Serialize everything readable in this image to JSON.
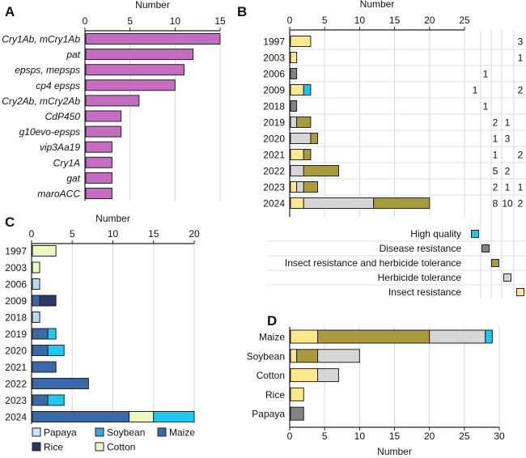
{
  "panels": {
    "a": "A",
    "b": "B",
    "c": "C",
    "d": "D"
  },
  "chart_data": [
    {
      "id": "A",
      "type": "bar",
      "orientation": "horizontal",
      "xlabel": "Number",
      "xlim": [
        0,
        15
      ],
      "xticks": [
        0,
        5,
        10,
        15
      ],
      "grid": true,
      "categories": [
        "Cry1Ab, mCry1Ab",
        "pat",
        "epsps, mepsps",
        "cp4 epsps",
        "Cry2Ab, mCry2Ab",
        "CdP450",
        "g10evo-epsps",
        "vip3Aa19",
        "Cry1A",
        "gat",
        "maroACC"
      ],
      "values": [
        15,
        12,
        11,
        10,
        6,
        4,
        4,
        3,
        3,
        3,
        3
      ],
      "colors": {
        "bar": "#c56dc0"
      }
    },
    {
      "id": "B",
      "type": "bar",
      "orientation": "horizontal",
      "stacked": true,
      "xlabel": "Number",
      "xlim": [
        0,
        25
      ],
      "xticks": [
        0,
        5,
        10,
        15,
        20,
        25
      ],
      "grid": true,
      "categories": [
        "1997",
        "2003",
        "2006",
        "2009",
        "2018",
        "2019",
        "2020",
        "2021",
        "2022",
        "2023",
        "2024"
      ],
      "series": [
        {
          "name": "Insect resistance",
          "color": "#fde98c",
          "values": [
            3,
            1,
            0,
            2,
            0,
            0,
            0,
            2,
            0,
            1,
            2
          ]
        },
        {
          "name": "Herbicide tolerance",
          "color": "#d6d6d6",
          "values": [
            0,
            0,
            0,
            0,
            0,
            1,
            3,
            0,
            2,
            1,
            10
          ]
        },
        {
          "name": "Insect  resistance and herbicide tolerance",
          "color": "#a99b3b",
          "values": [
            0,
            0,
            0,
            0,
            0,
            2,
            1,
            1,
            5,
            2,
            8
          ]
        },
        {
          "name": "Disease resistance",
          "color": "#828282",
          "values": [
            0,
            0,
            1,
            0,
            1,
            0,
            0,
            0,
            0,
            0,
            0
          ]
        },
        {
          "name": "High quality",
          "color": "#1fc3ee",
          "values": [
            0,
            0,
            0,
            1,
            0,
            0,
            0,
            0,
            0,
            0,
            0
          ]
        }
      ],
      "legend_order": [
        "High quality",
        "Disease resistance",
        "Insect  resistance and herbicide tolerance",
        "Herbicide tolerance",
        "Insect resistance"
      ],
      "legend": "bottom-right table"
    },
    {
      "id": "C",
      "type": "bar",
      "orientation": "horizontal",
      "stacked": true,
      "xlabel": "Number",
      "xlim": [
        0,
        20
      ],
      "xticks": [
        0,
        5,
        10,
        15,
        20
      ],
      "grid": true,
      "categories": [
        "1997",
        "2003",
        "2006",
        "2009",
        "2018",
        "2019",
        "2020",
        "2021",
        "2022",
        "2023",
        "2024"
      ],
      "series": [
        {
          "name": "Papaya",
          "color": "#b9d8f2",
          "legend_color": "#cfe4f5",
          "values": [
            0,
            0,
            1,
            0,
            1,
            0,
            0,
            0,
            0,
            0,
            0
          ]
        },
        {
          "name": "Maize",
          "color": "#3a69a8",
          "legend_color": "#3a69a8",
          "values": [
            0,
            0,
            0,
            1,
            0,
            2,
            2,
            3,
            7,
            2,
            12
          ]
        },
        {
          "name": "Rice",
          "color": "#2b3960",
          "legend_color": "#2b3960",
          "values": [
            0,
            0,
            0,
            2,
            0,
            0,
            0,
            0,
            0,
            0,
            0
          ]
        },
        {
          "name": "Cotton",
          "color": "#eaf8c2",
          "legend_color": "#eaf8c2",
          "values": [
            3,
            1,
            0,
            0,
            0,
            0,
            0,
            0,
            0,
            0,
            3
          ]
        },
        {
          "name": "Soybean",
          "color": "#1fc8ee",
          "legend_color": "#3ba5dc",
          "values": [
            0,
            0,
            0,
            0,
            0,
            1,
            2,
            0,
            0,
            2,
            5
          ]
        }
      ],
      "legend_order": [
        "Papaya",
        "Soybean",
        "Maize",
        "Rice",
        "Cotton"
      ],
      "legend": "bottom"
    },
    {
      "id": "D",
      "type": "bar",
      "orientation": "horizontal",
      "stacked": true,
      "xlabel": "Number",
      "xlim": [
        0,
        30
      ],
      "xticks": [
        0,
        5,
        10,
        15,
        20,
        25,
        30
      ],
      "grid": true,
      "categories": [
        "Maize",
        "Soybean",
        "Cotton",
        "Rice",
        "Papaya"
      ],
      "series": [
        {
          "name": "Insect resistance",
          "color": "#fde98c",
          "values": [
            4,
            1,
            4,
            2,
            0
          ]
        },
        {
          "name": "Insect  resistance and herbicide tolerance",
          "color": "#a99b3b",
          "values": [
            16,
            3,
            0,
            0,
            0
          ]
        },
        {
          "name": "Herbicide tolerance",
          "color": "#d6d6d6",
          "values": [
            8,
            6,
            3,
            0,
            0
          ]
        },
        {
          "name": "Disease resistance",
          "color": "#828282",
          "values": [
            0,
            0,
            0,
            0,
            2
          ]
        },
        {
          "name": "High quality",
          "color": "#1fc3ee",
          "values": [
            1,
            0,
            0,
            0,
            0
          ]
        }
      ]
    }
  ]
}
